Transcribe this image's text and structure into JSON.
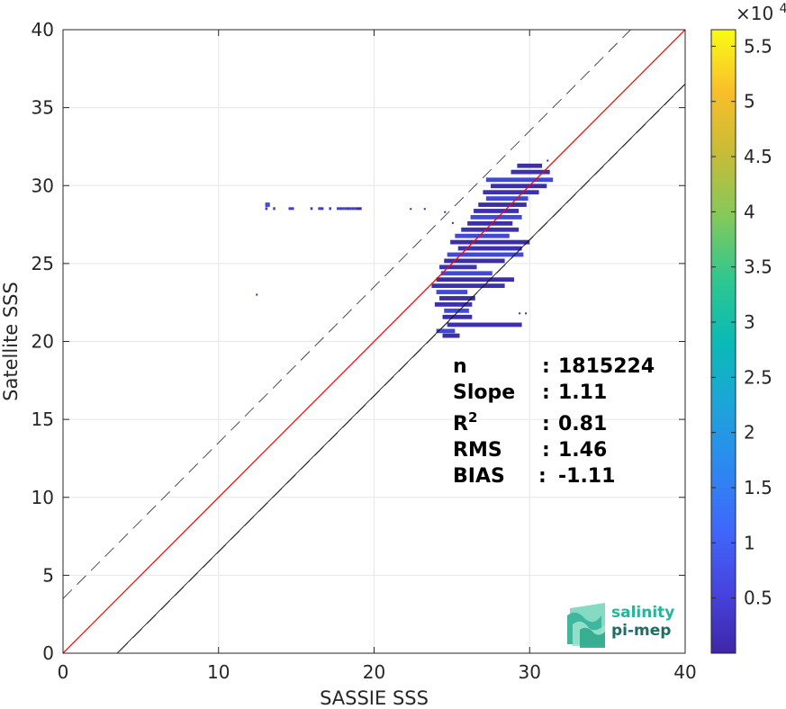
{
  "chart_data": {
    "type": "heatmap",
    "xlabel": "SASSIE SSS",
    "ylabel": "Satellite SSS",
    "xlim": [
      0,
      40
    ],
    "ylim": [
      0,
      40
    ],
    "xticks": [
      "0",
      "10",
      "20",
      "30",
      "40"
    ],
    "yticks": [
      "0",
      "5",
      "10",
      "15",
      "20",
      "25",
      "30",
      "35",
      "40"
    ],
    "grid": true,
    "colorbar": {
      "exponent_label": "×10",
      "exponent": "4",
      "ticks": [
        "0.5",
        "1",
        "1.5",
        "2",
        "2.5",
        "3",
        "3.5",
        "4",
        "4.5",
        "5",
        "5.5"
      ],
      "tick_values": [
        0.5,
        1,
        1.5,
        2,
        2.5,
        3,
        3.5,
        4,
        4.5,
        5,
        5.5
      ],
      "range": [
        0,
        5.65
      ]
    },
    "reference_lines": {
      "identity": {
        "color": "#000000",
        "style": "solid"
      },
      "fit": {
        "slope": 1.11,
        "bias": -1.11,
        "color": "#ff0000",
        "style": "solid"
      },
      "rms_band": {
        "offset": 1.46,
        "color": "#000000",
        "style": "dashed"
      }
    },
    "stats": [
      {
        "label": "n",
        "sep": ":",
        "value": "1815224"
      },
      {
        "label": "Slope",
        "sep": ":",
        "value": "1.11"
      },
      {
        "label": "R",
        "sup": "2",
        "sep": ":",
        "value": "0.81"
      },
      {
        "label": "RMS",
        "sep": ":",
        "value": "1.46"
      },
      {
        "label": "BIAS",
        "sep": ":",
        "value": "-1.11"
      }
    ],
    "density_rows": [
      {
        "y": 28.5,
        "x0": 13.0,
        "x1": 19.0,
        "sparse": true
      },
      {
        "y": 28.8,
        "x0": 13.0,
        "x1": 13.3,
        "sparse": false
      },
      {
        "y": 31.3,
        "x0": 29.2,
        "x1": 30.8,
        "sparse": false
      },
      {
        "y": 30.9,
        "x0": 28.8,
        "x1": 31.3,
        "sparse": false
      },
      {
        "y": 30.4,
        "x0": 27.2,
        "x1": 31.5,
        "sparse": false
      },
      {
        "y": 30.0,
        "x0": 27.5,
        "x1": 31.1,
        "sparse": false
      },
      {
        "y": 29.6,
        "x0": 27.0,
        "x1": 30.6,
        "sparse": false
      },
      {
        "y": 29.2,
        "x0": 27.2,
        "x1": 29.9,
        "sparse": false
      },
      {
        "y": 28.8,
        "x0": 26.7,
        "x1": 29.8,
        "sparse": false
      },
      {
        "y": 28.4,
        "x0": 26.4,
        "x1": 29.3,
        "sparse": false
      },
      {
        "y": 28.0,
        "x0": 26.2,
        "x1": 29.5,
        "sparse": false
      },
      {
        "y": 27.6,
        "x0": 26.0,
        "x1": 28.9,
        "sparse": false
      },
      {
        "y": 27.2,
        "x0": 25.6,
        "x1": 29.3,
        "sparse": false
      },
      {
        "y": 26.8,
        "x0": 25.2,
        "x1": 28.7,
        "sparse": false
      },
      {
        "y": 26.4,
        "x0": 24.9,
        "x1": 30.0,
        "sparse": false
      },
      {
        "y": 26.0,
        "x0": 25.4,
        "x1": 29.5,
        "sparse": false
      },
      {
        "y": 25.6,
        "x0": 24.7,
        "x1": 29.6,
        "sparse": false
      },
      {
        "y": 25.2,
        "x0": 24.5,
        "x1": 28.4,
        "sparse": false
      },
      {
        "y": 24.8,
        "x0": 24.2,
        "x1": 26.6,
        "sparse": false
      },
      {
        "y": 24.4,
        "x0": 24.3,
        "x1": 27.6,
        "sparse": false
      },
      {
        "y": 24.0,
        "x0": 24.0,
        "x1": 29.0,
        "sparse": false
      },
      {
        "y": 23.6,
        "x0": 23.7,
        "x1": 28.4,
        "sparse": false
      },
      {
        "y": 23.2,
        "x0": 24.0,
        "x1": 26.0,
        "sparse": false
      },
      {
        "y": 22.8,
        "x0": 24.2,
        "x1": 26.5,
        "sparse": false
      },
      {
        "y": 22.4,
        "x0": 23.9,
        "x1": 26.3,
        "sparse": false
      },
      {
        "y": 22.0,
        "x0": 24.5,
        "x1": 26.1,
        "sparse": false
      },
      {
        "y": 21.6,
        "x0": 24.4,
        "x1": 26.3,
        "sparse": false
      },
      {
        "y": 21.1,
        "x0": 24.7,
        "x1": 29.5,
        "sparse": false
      },
      {
        "y": 20.7,
        "x0": 24.0,
        "x1": 25.2,
        "sparse": false
      },
      {
        "y": 20.4,
        "x0": 24.4,
        "x1": 25.5,
        "sparse": false
      }
    ],
    "density_points": [
      {
        "x": 12.4,
        "y": 23.0
      },
      {
        "x": 22.3,
        "y": 28.5
      },
      {
        "x": 23.2,
        "y": 28.5
      },
      {
        "x": 24.5,
        "y": 28.3
      },
      {
        "x": 25.0,
        "y": 27.6
      },
      {
        "x": 29.3,
        "y": 21.8
      },
      {
        "x": 29.7,
        "y": 21.8
      },
      {
        "x": 31.1,
        "y": 31.6
      }
    ]
  },
  "logo": {
    "line1": "salinity",
    "line2": "pi-mep"
  }
}
